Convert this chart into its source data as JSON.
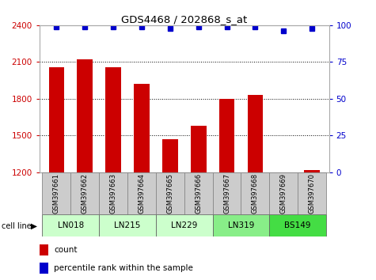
{
  "title": "GDS4468 / 202868_s_at",
  "samples": [
    "GSM397661",
    "GSM397662",
    "GSM397663",
    "GSM397664",
    "GSM397665",
    "GSM397666",
    "GSM397667",
    "GSM397668",
    "GSM397669",
    "GSM397670"
  ],
  "counts": [
    2060,
    2120,
    2060,
    1920,
    1470,
    1580,
    1800,
    1830,
    1190,
    1220
  ],
  "percentile_ranks": [
    99,
    99,
    99,
    99,
    98,
    99,
    99,
    99,
    96,
    98
  ],
  "ylim_left": [
    1200,
    2400
  ],
  "ylim_right": [
    0,
    100
  ],
  "yticks_left": [
    1200,
    1500,
    1800,
    2100,
    2400
  ],
  "yticks_right": [
    0,
    25,
    50,
    75,
    100
  ],
  "cell_lines": [
    {
      "name": "LN018",
      "samples": [
        0,
        1
      ],
      "color": "#ccffcc"
    },
    {
      "name": "LN215",
      "samples": [
        2,
        3
      ],
      "color": "#ccffcc"
    },
    {
      "name": "LN229",
      "samples": [
        4,
        5
      ],
      "color": "#ccffcc"
    },
    {
      "name": "LN319",
      "samples": [
        6,
        7
      ],
      "color": "#88ee88"
    },
    {
      "name": "BS149",
      "samples": [
        8,
        9
      ],
      "color": "#44dd44"
    }
  ],
  "bar_color": "#cc0000",
  "dot_color": "#0000cc",
  "left_tick_color": "#cc0000",
  "right_tick_color": "#0000cc",
  "grid_dotted_ticks": [
    1500,
    1800,
    2100
  ],
  "sample_box_color": "#cccccc",
  "background_color": "#ffffff"
}
